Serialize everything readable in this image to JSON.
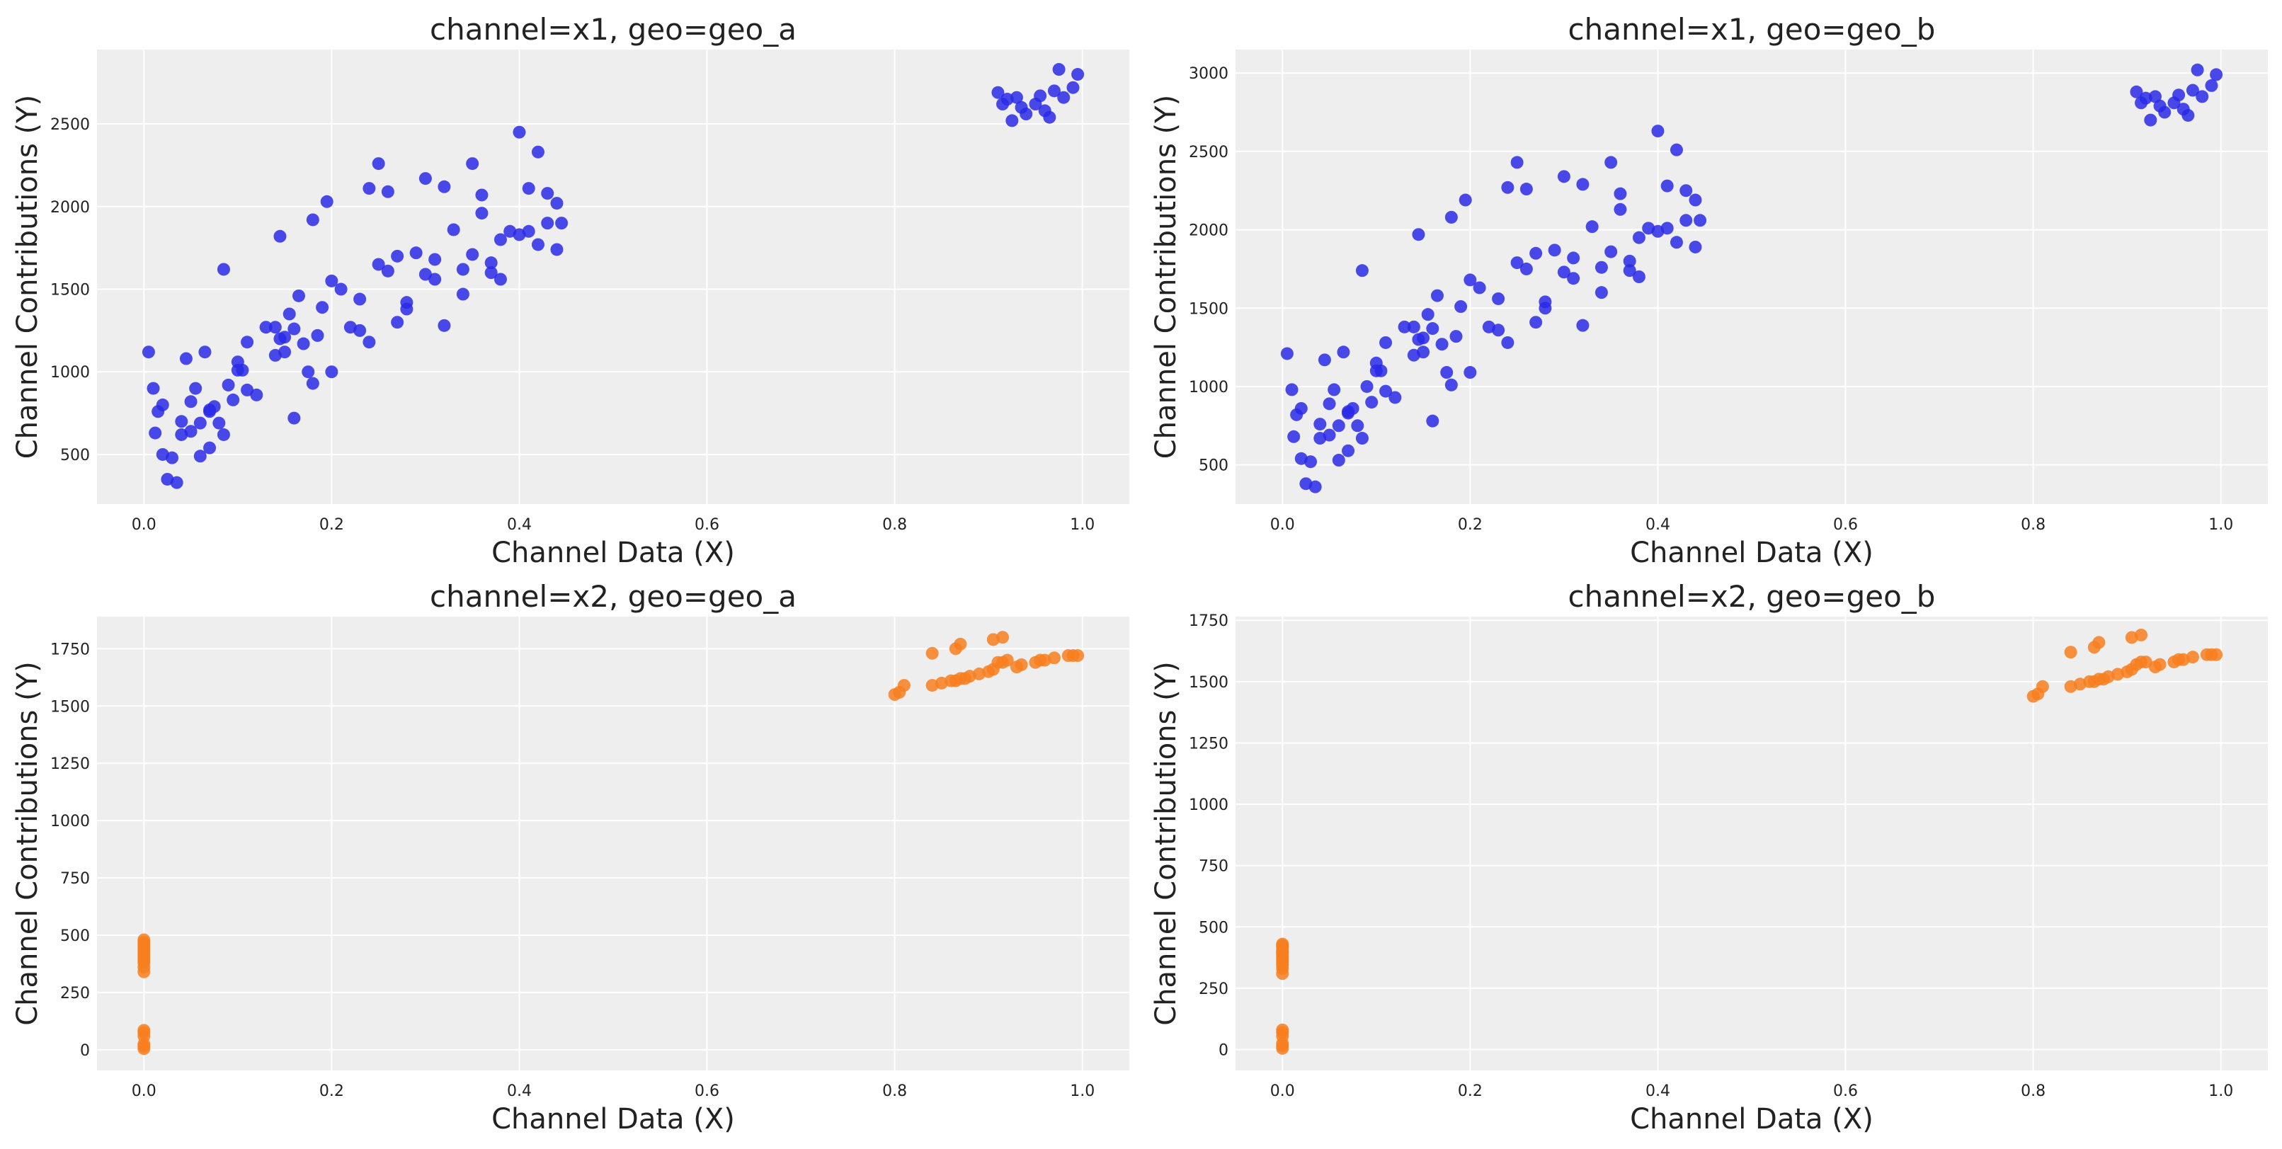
{
  "chart_data": [
    {
      "type": "scatter",
      "title": "channel=x1, geo=geo_a",
      "xlabel": "Channel Data (X)",
      "ylabel": "Channel Contributions (Y)",
      "xlim": [
        -0.05,
        1.05
      ],
      "ylim": [
        200,
        2950
      ],
      "xticks": [
        0.0,
        0.2,
        0.4,
        0.6,
        0.8,
        1.0
      ],
      "xtick_labels": [
        "0.0",
        "0.2",
        "0.4",
        "0.6",
        "0.8",
        "1.0"
      ],
      "yticks": [
        500,
        1000,
        1500,
        2000,
        2500
      ],
      "ytick_labels": [
        "500",
        "1000",
        "1500",
        "2000",
        "2500"
      ],
      "grid": true,
      "series": [
        {
          "color": "#2a2ae8",
          "x": [
            0.005,
            0.01,
            0.012,
            0.015,
            0.02,
            0.025,
            0.03,
            0.035,
            0.04,
            0.045,
            0.05,
            0.05,
            0.055,
            0.06,
            0.065,
            0.07,
            0.07,
            0.075,
            0.08,
            0.085,
            0.09,
            0.095,
            0.1,
            0.105,
            0.11,
            0.11,
            0.12,
            0.13,
            0.14,
            0.145,
            0.15,
            0.155,
            0.16,
            0.165,
            0.17,
            0.18,
            0.185,
            0.19,
            0.2,
            0.21,
            0.22,
            0.23,
            0.24,
            0.25,
            0.26,
            0.27,
            0.28,
            0.29,
            0.3,
            0.31,
            0.32,
            0.33,
            0.34,
            0.35,
            0.36,
            0.37,
            0.38,
            0.39,
            0.4,
            0.41,
            0.42,
            0.43,
            0.44,
            0.445,
            0.25,
            0.24,
            0.3,
            0.35,
            0.4,
            0.42,
            0.145,
            0.175,
            0.195,
            0.085,
            0.16,
            0.18,
            0.26,
            0.32,
            0.36,
            0.41,
            0.43,
            0.06,
            0.1,
            0.14,
            0.2,
            0.28,
            0.34,
            0.38,
            0.44,
            0.02,
            0.04,
            0.07,
            0.15,
            0.23,
            0.27,
            0.31,
            0.37,
            0.91,
            0.915,
            0.92,
            0.925,
            0.93,
            0.935,
            0.94,
            0.95,
            0.955,
            0.96,
            0.965,
            0.97,
            0.975,
            0.98,
            0.99,
            0.995
          ],
          "y": [
            1120,
            900,
            630,
            760,
            800,
            350,
            480,
            330,
            700,
            1080,
            640,
            820,
            900,
            690,
            1120,
            770,
            540,
            790,
            690,
            1620,
            920,
            830,
            1060,
            1010,
            1180,
            890,
            860,
            1270,
            1100,
            1820,
            1210,
            1350,
            1260,
            1460,
            1170,
            930,
            1220,
            1390,
            1550,
            1500,
            1270,
            1440,
            1180,
            1650,
            1610,
            1700,
            1420,
            1720,
            1590,
            1680,
            1280,
            1860,
            1620,
            1710,
            1960,
            1660,
            1800,
            1850,
            1830,
            1850,
            1770,
            1900,
            2020,
            1900,
            2260,
            2110,
            2170,
            2260,
            2450,
            2330,
            1200,
            1000,
            2030,
            620,
            720,
            1920,
            2090,
            2120,
            2070,
            2110,
            2080,
            490,
            1010,
            1270,
            1000,
            1380,
            1470,
            1560,
            1740,
            500,
            620,
            760,
            1120,
            1250,
            1300,
            1560,
            1600,
            2690,
            2620,
            2650,
            2520,
            2660,
            2600,
            2560,
            2620,
            2670,
            2580,
            2540,
            2700,
            2830,
            2660,
            2720,
            2800
          ]
        }
      ]
    },
    {
      "type": "scatter",
      "title": "channel=x1, geo=geo_b",
      "xlabel": "Channel Data (X)",
      "ylabel": "Channel Contributions (Y)",
      "xlim": [
        -0.05,
        1.05
      ],
      "ylim": [
        250,
        3150
      ],
      "xticks": [
        0.0,
        0.2,
        0.4,
        0.6,
        0.8,
        1.0
      ],
      "xtick_labels": [
        "0.0",
        "0.2",
        "0.4",
        "0.6",
        "0.8",
        "1.0"
      ],
      "yticks": [
        500,
        1000,
        1500,
        2000,
        2500,
        3000
      ],
      "ytick_labels": [
        "500",
        "1000",
        "1500",
        "2000",
        "2500",
        "3000"
      ],
      "grid": true,
      "series": [
        {
          "color": "#2a2ae8",
          "x": [
            0.005,
            0.01,
            0.012,
            0.015,
            0.02,
            0.025,
            0.03,
            0.035,
            0.04,
            0.045,
            0.05,
            0.05,
            0.055,
            0.06,
            0.065,
            0.07,
            0.07,
            0.075,
            0.08,
            0.085,
            0.09,
            0.095,
            0.1,
            0.105,
            0.11,
            0.11,
            0.12,
            0.13,
            0.14,
            0.145,
            0.15,
            0.155,
            0.16,
            0.165,
            0.17,
            0.18,
            0.185,
            0.19,
            0.2,
            0.21,
            0.22,
            0.23,
            0.24,
            0.25,
            0.26,
            0.27,
            0.28,
            0.29,
            0.3,
            0.31,
            0.32,
            0.33,
            0.34,
            0.35,
            0.36,
            0.37,
            0.38,
            0.39,
            0.4,
            0.41,
            0.42,
            0.43,
            0.44,
            0.445,
            0.25,
            0.24,
            0.3,
            0.35,
            0.4,
            0.42,
            0.145,
            0.175,
            0.195,
            0.085,
            0.16,
            0.18,
            0.26,
            0.32,
            0.36,
            0.41,
            0.43,
            0.06,
            0.1,
            0.14,
            0.2,
            0.28,
            0.34,
            0.38,
            0.44,
            0.02,
            0.04,
            0.07,
            0.15,
            0.23,
            0.27,
            0.31,
            0.37,
            0.91,
            0.915,
            0.92,
            0.925,
            0.93,
            0.935,
            0.94,
            0.95,
            0.955,
            0.96,
            0.965,
            0.97,
            0.975,
            0.98,
            0.99,
            0.995
          ],
          "y": [
            1210,
            980,
            680,
            820,
            860,
            380,
            520,
            360,
            760,
            1170,
            690,
            890,
            980,
            750,
            1220,
            840,
            590,
            860,
            750,
            1740,
            1000,
            900,
            1150,
            1100,
            1280,
            970,
            930,
            1380,
            1200,
            1970,
            1310,
            1460,
            1370,
            1580,
            1270,
            1010,
            1320,
            1510,
            1680,
            1630,
            1380,
            1560,
            1280,
            1790,
            1750,
            1850,
            1540,
            1870,
            1730,
            1820,
            1390,
            2020,
            1760,
            1860,
            2130,
            1800,
            1950,
            2010,
            1990,
            2010,
            1920,
            2060,
            2190,
            2060,
            2430,
            2270,
            2340,
            2430,
            2630,
            2510,
            1300,
            1090,
            2190,
            670,
            780,
            2080,
            2260,
            2290,
            2230,
            2280,
            2250,
            530,
            1100,
            1380,
            1090,
            1500,
            1600,
            1700,
            1890,
            540,
            670,
            830,
            1220,
            1360,
            1410,
            1690,
            1740,
            2880,
            2810,
            2840,
            2700,
            2850,
            2790,
            2750,
            2810,
            2860,
            2770,
            2730,
            2890,
            3020,
            2850,
            2920,
            2990
          ]
        }
      ]
    },
    {
      "type": "scatter",
      "title": "channel=x2, geo=geo_a",
      "xlabel": "Channel Data (X)",
      "ylabel": "Channel Contributions (Y)",
      "xlim": [
        -0.05,
        1.05
      ],
      "ylim": [
        -90,
        1890
      ],
      "xticks": [
        0.0,
        0.2,
        0.4,
        0.6,
        0.8,
        1.0
      ],
      "xtick_labels": [
        "0.0",
        "0.2",
        "0.4",
        "0.6",
        "0.8",
        "1.0"
      ],
      "yticks": [
        0,
        250,
        500,
        750,
        1000,
        1250,
        1500,
        1750
      ],
      "ytick_labels": [
        "0",
        "250",
        "500",
        "750",
        "1000",
        "1250",
        "1500",
        "1750"
      ],
      "grid": true,
      "series": [
        {
          "color": "#f77f1f",
          "x": [
            0,
            0,
            0,
            0,
            0,
            0,
            0,
            0,
            0,
            0,
            0,
            0,
            0,
            0,
            0,
            0,
            0,
            0,
            0,
            0.8,
            0.805,
            0.81,
            0.84,
            0.85,
            0.86,
            0.865,
            0.87,
            0.875,
            0.88,
            0.89,
            0.9,
            0.905,
            0.91,
            0.915,
            0.92,
            0.93,
            0.935,
            0.95,
            0.955,
            0.96,
            0.97,
            0.985,
            0.99,
            0.995,
            0.84,
            0.865,
            0.87,
            0.905,
            0.915
          ],
          "y": [
            5,
            15,
            25,
            60,
            75,
            85,
            340,
            360,
            380,
            390,
            400,
            410,
            420,
            430,
            440,
            450,
            460,
            470,
            480,
            1550,
            1560,
            1590,
            1590,
            1600,
            1610,
            1610,
            1620,
            1620,
            1630,
            1640,
            1650,
            1660,
            1690,
            1690,
            1700,
            1670,
            1680,
            1690,
            1700,
            1700,
            1710,
            1720,
            1720,
            1720,
            1730,
            1750,
            1770,
            1790,
            1800
          ]
        }
      ]
    },
    {
      "type": "scatter",
      "title": "channel=x2, geo=geo_b",
      "xlabel": "Channel Data (X)",
      "ylabel": "Channel Contributions (Y)",
      "xlim": [
        -0.05,
        1.05
      ],
      "ylim": [
        -85,
        1765
      ],
      "xticks": [
        0.0,
        0.2,
        0.4,
        0.6,
        0.8,
        1.0
      ],
      "xtick_labels": [
        "0.0",
        "0.2",
        "0.4",
        "0.6",
        "0.8",
        "1.0"
      ],
      "yticks": [
        0,
        250,
        500,
        750,
        1000,
        1250,
        1500,
        1750
      ],
      "ytick_labels": [
        "0",
        "250",
        "500",
        "750",
        "1000",
        "1250",
        "1500",
        "1750"
      ],
      "grid": true,
      "series": [
        {
          "color": "#f77f1f",
          "x": [
            0,
            0,
            0,
            0,
            0,
            0,
            0,
            0,
            0,
            0,
            0,
            0,
            0,
            0,
            0,
            0,
            0,
            0,
            0,
            0.8,
            0.805,
            0.81,
            0.84,
            0.85,
            0.86,
            0.865,
            0.87,
            0.875,
            0.88,
            0.89,
            0.9,
            0.905,
            0.91,
            0.915,
            0.92,
            0.93,
            0.935,
            0.95,
            0.955,
            0.96,
            0.97,
            0.985,
            0.99,
            0.995,
            0.84,
            0.865,
            0.87,
            0.905,
            0.915
          ],
          "y": [
            5,
            15,
            25,
            55,
            70,
            80,
            310,
            330,
            345,
            355,
            365,
            375,
            385,
            395,
            400,
            410,
            420,
            425,
            430,
            1440,
            1450,
            1480,
            1480,
            1490,
            1500,
            1500,
            1510,
            1510,
            1520,
            1530,
            1540,
            1550,
            1570,
            1580,
            1580,
            1560,
            1570,
            1580,
            1590,
            1590,
            1600,
            1610,
            1610,
            1610,
            1620,
            1640,
            1660,
            1680,
            1690
          ]
        }
      ]
    }
  ]
}
